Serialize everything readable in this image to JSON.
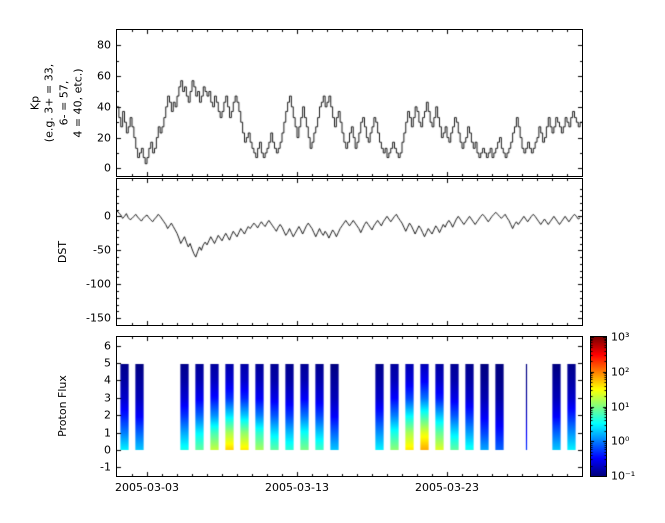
{
  "figure": {
    "background": "#ffffff",
    "line_color": "#000000",
    "x_range_days": [
      0,
      31
    ],
    "x_ticks": [
      {
        "day": 2,
        "label": "2005-03-03"
      },
      {
        "day": 12,
        "label": "2005-03-13"
      },
      {
        "day": 22,
        "label": "2005-03-23"
      }
    ]
  },
  "chart_data": [
    {
      "type": "line",
      "id": "kp",
      "ylabel": "Kp\n(e.g. 3+ = 33,\n6- = 57,\n4 = 40, etc.)",
      "xlabel": "",
      "step": true,
      "ylim": [
        -5,
        90
      ],
      "yticks": [
        0,
        20,
        40,
        60,
        80
      ],
      "yminor": [
        10,
        30,
        50,
        70
      ],
      "sample_hours": 3,
      "start_date": "2005-03-01",
      "values": [
        40,
        33,
        27,
        37,
        30,
        23,
        27,
        33,
        27,
        20,
        13,
        7,
        10,
        13,
        7,
        3,
        7,
        13,
        17,
        10,
        13,
        20,
        27,
        23,
        27,
        33,
        40,
        47,
        43,
        37,
        43,
        40,
        47,
        53,
        57,
        50,
        53,
        47,
        43,
        50,
        57,
        53,
        47,
        50,
        43,
        47,
        53,
        50,
        47,
        50,
        43,
        40,
        47,
        43,
        37,
        33,
        37,
        43,
        47,
        40,
        33,
        37,
        43,
        47,
        43,
        37,
        30,
        23,
        17,
        20,
        23,
        17,
        13,
        10,
        7,
        13,
        17,
        10,
        7,
        10,
        13,
        17,
        23,
        17,
        13,
        10,
        13,
        17,
        23,
        30,
        37,
        43,
        47,
        40,
        33,
        27,
        20,
        27,
        33,
        40,
        33,
        27,
        20,
        13,
        17,
        23,
        27,
        33,
        40,
        43,
        47,
        40,
        43,
        47,
        40,
        33,
        27,
        33,
        37,
        30,
        23,
        17,
        13,
        17,
        23,
        27,
        20,
        13,
        17,
        23,
        30,
        33,
        27,
        20,
        17,
        23,
        27,
        33,
        30,
        23,
        17,
        13,
        10,
        13,
        7,
        10,
        13,
        17,
        13,
        10,
        7,
        10,
        17,
        23,
        30,
        37,
        33,
        27,
        33,
        40,
        37,
        30,
        27,
        33,
        37,
        43,
        37,
        30,
        27,
        33,
        40,
        33,
        27,
        20,
        23,
        27,
        20,
        17,
        23,
        27,
        33,
        30,
        23,
        17,
        13,
        17,
        20,
        27,
        23,
        17,
        13,
        17,
        10,
        7,
        10,
        13,
        10,
        7,
        10,
        13,
        7,
        10,
        13,
        17,
        20,
        13,
        10,
        7,
        10,
        13,
        17,
        23,
        27,
        33,
        27,
        20,
        13,
        10,
        13,
        17,
        13,
        10,
        13,
        17,
        20,
        27,
        23,
        17,
        20,
        27,
        33,
        27,
        23,
        27,
        33,
        30,
        27,
        23,
        27,
        33,
        30,
        27,
        33,
        37,
        33,
        30,
        27,
        30
      ]
    },
    {
      "type": "line",
      "id": "dst",
      "ylabel": "DST",
      "xlabel": "",
      "step": false,
      "ylim": [
        -160,
        55
      ],
      "yticks": [
        0,
        -50,
        -100,
        -150
      ],
      "yminor": [
        40,
        30,
        20,
        10,
        -10,
        -20,
        -30,
        -40,
        -60,
        -70,
        -80,
        -90,
        -110,
        -120,
        -130,
        -140
      ],
      "sample_hours": 3,
      "start_date": "2005-03-01",
      "values": [
        8,
        5,
        2,
        -3,
        0,
        4,
        -2,
        -5,
        -3,
        0,
        3,
        -1,
        -4,
        -7,
        -3,
        0,
        2,
        -2,
        -5,
        -8,
        -4,
        -1,
        3,
        0,
        -4,
        -8,
        -12,
        -18,
        -14,
        -10,
        -15,
        -20,
        -25,
        -32,
        -40,
        -35,
        -30,
        -38,
        -45,
        -40,
        -48,
        -55,
        -60,
        -52,
        -45,
        -50,
        -42,
        -38,
        -42,
        -36,
        -30,
        -35,
        -40,
        -34,
        -28,
        -32,
        -36,
        -30,
        -25,
        -30,
        -35,
        -28,
        -22,
        -26,
        -30,
        -24,
        -18,
        -22,
        -26,
        -20,
        -15,
        -18,
        -14,
        -10,
        -13,
        -17,
        -12,
        -8,
        -12,
        -15,
        -10,
        -6,
        -10,
        -14,
        -18,
        -22,
        -16,
        -12,
        -16,
        -22,
        -28,
        -24,
        -18,
        -24,
        -30,
        -25,
        -20,
        -15,
        -20,
        -26,
        -20,
        -14,
        -10,
        -14,
        -18,
        -24,
        -30,
        -24,
        -18,
        -24,
        -28,
        -22,
        -26,
        -32,
        -26,
        -20,
        -24,
        -30,
        -24,
        -18,
        -14,
        -10,
        -6,
        -10,
        -14,
        -10,
        -6,
        -10,
        -14,
        -18,
        -24,
        -18,
        -12,
        -8,
        -12,
        -16,
        -20,
        -14,
        -10,
        -6,
        -10,
        -14,
        -8,
        -4,
        0,
        -4,
        -8,
        -4,
        0,
        3,
        -2,
        -6,
        -10,
        -16,
        -22,
        -16,
        -10,
        -14,
        -20,
        -26,
        -20,
        -14,
        -18,
        -24,
        -30,
        -24,
        -18,
        -22,
        -26,
        -20,
        -14,
        -18,
        -24,
        -18,
        -12,
        -16,
        -10,
        -6,
        -10,
        -16,
        -10,
        -4,
        0,
        -4,
        -8,
        -12,
        -8,
        -4,
        0,
        -4,
        -8,
        -12,
        -8,
        -4,
        0,
        3,
        0,
        -4,
        -8,
        -4,
        0,
        3,
        6,
        3,
        0,
        -3,
        0,
        3,
        -2,
        -6,
        -12,
        -18,
        -12,
        -8,
        -12,
        -8,
        -4,
        0,
        -4,
        -8,
        -4,
        0,
        3,
        0,
        -4,
        -8,
        -12,
        -8,
        -4,
        -8,
        -12,
        -8,
        -4,
        0,
        -4,
        -8,
        -12,
        -8,
        -4,
        0,
        -4,
        -8,
        -4,
        0,
        3,
        0,
        -4,
        -2
      ]
    },
    {
      "type": "heatmap",
      "id": "proton_flux",
      "ylabel": "Proton Flux",
      "xlabel": "",
      "ylim": [
        -1.5,
        6.5
      ],
      "yticks": [
        6,
        5,
        4,
        3,
        2,
        1,
        0,
        -1
      ],
      "colormap": "jet",
      "clim_log10": [
        -1,
        3
      ],
      "colorbar_ticks": [
        "10³",
        "10²",
        "10¹",
        "10⁰",
        "10⁻¹"
      ],
      "y_levels": [
        0,
        1,
        2,
        3,
        4,
        5
      ],
      "columns": [
        {
          "day": 0.5,
          "flux": [
            3,
            1,
            0.4,
            0.2,
            0.14,
            0.11
          ]
        },
        {
          "day": 1.5,
          "flux": [
            2,
            0.8,
            0.3,
            0.17,
            0.13,
            0.1
          ]
        },
        {
          "day": 4.5,
          "flux": [
            4,
            1.5,
            0.5,
            0.22,
            0.14,
            0.11
          ]
        },
        {
          "day": 5.5,
          "flux": [
            8,
            3,
            0.8,
            0.28,
            0.16,
            0.12
          ]
        },
        {
          "day": 6.5,
          "flux": [
            20,
            6,
            1.2,
            0.35,
            0.18,
            0.13
          ]
        },
        {
          "day": 7.5,
          "flux": [
            50,
            15,
            2.5,
            0.5,
            0.22,
            0.14
          ]
        },
        {
          "day": 8.5,
          "flux": [
            40,
            12,
            2,
            0.45,
            0.2,
            0.14
          ]
        },
        {
          "day": 9.5,
          "flux": [
            15,
            5,
            1,
            0.3,
            0.17,
            0.12
          ]
        },
        {
          "day": 10.5,
          "flux": [
            8,
            2.5,
            0.7,
            0.26,
            0.15,
            0.12
          ]
        },
        {
          "day": 11.5,
          "flux": [
            5,
            1.8,
            0.55,
            0.23,
            0.14,
            0.11
          ]
        },
        {
          "day": 12.5,
          "flux": [
            10,
            3.5,
            0.9,
            0.3,
            0.16,
            0.12
          ]
        },
        {
          "day": 13.5,
          "flux": [
            6,
            2,
            0.6,
            0.24,
            0.15,
            0.11
          ]
        },
        {
          "day": 14.5,
          "flux": [
            2,
            0.8,
            0.3,
            0.17,
            0.13,
            0.1
          ]
        },
        {
          "day": 17.5,
          "flux": [
            3,
            1.2,
            0.45,
            0.2,
            0.14,
            0.11
          ]
        },
        {
          "day": 18.5,
          "flux": [
            12,
            4,
            1,
            0.32,
            0.17,
            0.13
          ]
        },
        {
          "day": 19.5,
          "flux": [
            40,
            15,
            3,
            0.6,
            0.24,
            0.15
          ]
        },
        {
          "day": 20.5,
          "flux": [
            70,
            25,
            5,
            0.9,
            0.3,
            0.16
          ]
        },
        {
          "day": 21.5,
          "flux": [
            25,
            8,
            1.8,
            0.4,
            0.19,
            0.13
          ]
        },
        {
          "day": 22.5,
          "flux": [
            8,
            2.5,
            0.7,
            0.26,
            0.15,
            0.12
          ]
        },
        {
          "day": 23.5,
          "flux": [
            4,
            1.4,
            0.5,
            0.21,
            0.14,
            0.11
          ]
        },
        {
          "day": 24.5,
          "flux": [
            1.5,
            0.6,
            0.28,
            0.16,
            0.12,
            0.1
          ]
        },
        {
          "day": 25.5,
          "flux": [
            0.8,
            0.4,
            0.22,
            0.14,
            0.11,
            0.1
          ]
        },
        {
          "day": 27.3,
          "flux": [
            0.5,
            0.3,
            0.18,
            0.13,
            0.11,
            0.1
          ],
          "w": 0.08
        },
        {
          "day": 29.3,
          "flux": [
            2,
            0.8,
            0.3,
            0.17,
            0.13,
            0.1
          ]
        },
        {
          "day": 30.3,
          "flux": [
            3,
            1.2,
            0.45,
            0.2,
            0.14,
            0.11
          ]
        }
      ]
    }
  ]
}
